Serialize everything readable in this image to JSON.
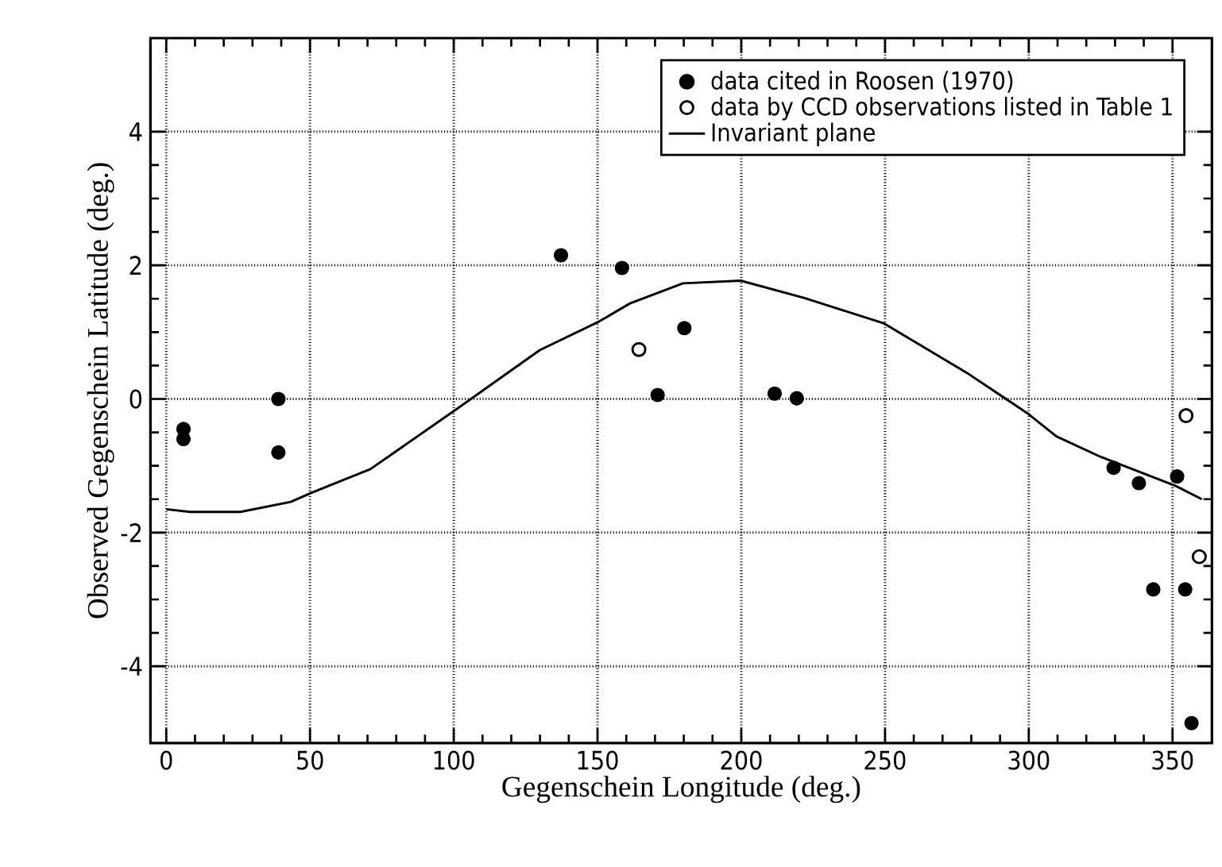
{
  "chart_data": {
    "type": "scatter",
    "xlabel": "Gegenschein Longitude (deg.)",
    "ylabel": "Observed Gegenschein Latitude (deg.)",
    "xlim": [
      -5.5,
      363.7
    ],
    "ylim": [
      -5.15,
      5.4
    ],
    "xticks": [
      0,
      50,
      100,
      150,
      200,
      250,
      300,
      350
    ],
    "yticks": [
      -4,
      -2,
      0,
      2,
      4
    ],
    "grid": true,
    "legend": "top right",
    "series": [
      {
        "name": "data cited in Roosen (1970)",
        "type": "scatter",
        "marker": "circle",
        "color": "#000000",
        "x": [
          6,
          6,
          39,
          39,
          137.3,
          158.5,
          170.9,
          180.2,
          211.6,
          219.3,
          329.5,
          338.3,
          343.3,
          351.6,
          354.4,
          356.6
        ],
        "values": [
          -0.45,
          -0.6,
          0.0,
          -0.8,
          2.15,
          1.96,
          0.06,
          1.06,
          0.08,
          0.01,
          -1.03,
          -1.26,
          -2.85,
          -1.16,
          -2.85,
          -4.85
        ]
      },
      {
        "name": "data by CCD observations listed in Table 1",
        "type": "scatter",
        "marker": "open circle",
        "color": "#000000",
        "x": [
          164.4,
          354.7,
          359.3
        ],
        "values": [
          0.74,
          -0.25,
          -2.36
        ]
      },
      {
        "name": "Invariant plane",
        "type": "line",
        "marker": "none",
        "line_style": "solid",
        "color": "#000000",
        "x": [
          0,
          8.3,
          25.8,
          43.3,
          50.7,
          71,
          100.4,
          129.9,
          150.6,
          161.3,
          179.7,
          199.8,
          222,
          249.7,
          279.2,
          299.4,
          309.6,
          325.2,
          351,
          360.2
        ],
        "values": [
          -1.65,
          -1.69,
          -1.69,
          -1.54,
          -1.4,
          -1.05,
          -0.17,
          0.73,
          1.16,
          1.43,
          1.73,
          1.77,
          1.51,
          1.13,
          0.37,
          -0.21,
          -0.56,
          -0.87,
          -1.3,
          -1.5
        ]
      }
    ]
  }
}
